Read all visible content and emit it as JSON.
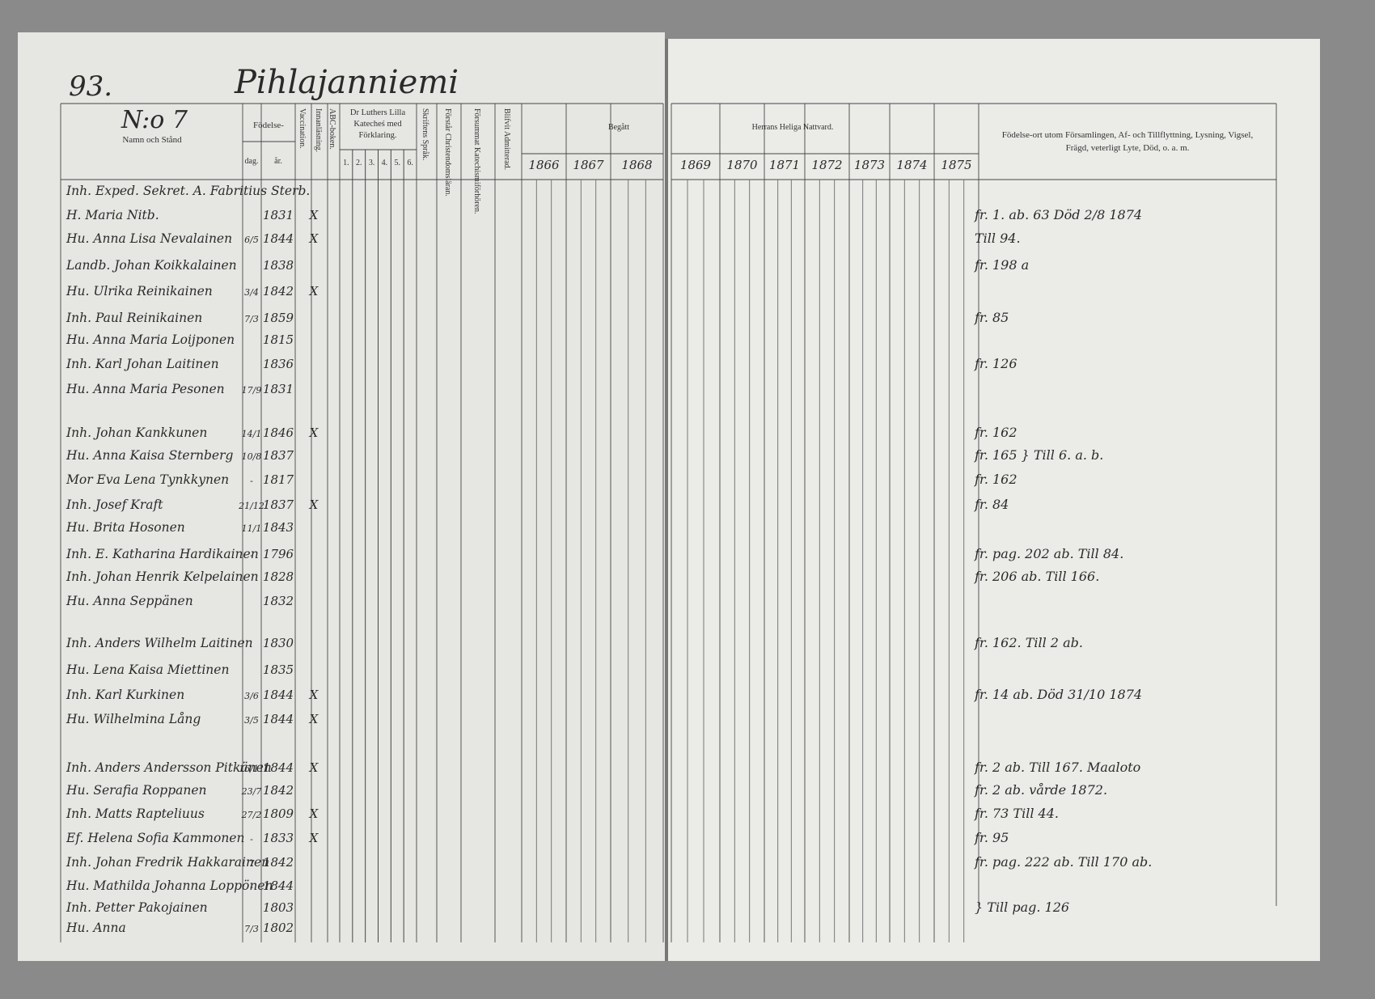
{
  "page": {
    "number": "93.",
    "village": "Pihlajanniemi",
    "household": "N:o 7",
    "col_name": "Namn och Stånd",
    "birth": "Födelse-",
    "day": "dag.",
    "year": "år.",
    "vertical": [
      "Vaccination.",
      "Innanläsning.",
      "ABC-boken."
    ],
    "luther": [
      "Dr Luthers Lilla",
      "Katecheś med",
      "Förklaring."
    ],
    "luther_parts": [
      "1.",
      "2.",
      "3.",
      "4.",
      "5.",
      "6."
    ],
    "vertical2": [
      "Skriftens Språk.",
      "Förstår Christendomsläran.",
      "Försummat Katechismiförhören.",
      "Blifvit Admitterad."
    ],
    "communion_left": "Begått",
    "communion_right": "Herrans Heliga Nattvard.",
    "years": [
      "1866",
      "1867",
      "1868",
      "1869",
      "1870",
      "1871",
      "1872",
      "1873",
      "1874",
      "1875"
    ],
    "remarks_header": [
      "Födelse-ort utom Församlingen, Af- och Tillflyttning, Lysning, Vigsel,",
      "Frägd, veterligt Lyte, Död, o. a. m."
    ],
    "rows": [
      {
        "name": "Inh. Exped. Sekret. A. Fabritius Sterb."
      },
      {
        "name": "H. Maria Nitb.",
        "year": "1831",
        "vacc": "X",
        "note": "fr. 1. ab. 63 Död 2/8 1874"
      },
      {
        "name": "Hu. Anna Lisa Nevalainen",
        "day": "6/5",
        "year": "1844",
        "vacc": "X",
        "note": "Till 94."
      },
      {
        "name": "Landb. Johan Koikkalainen",
        "year": "1838",
        "note": "fr. 198 a"
      },
      {
        "name": "Hu. Ulrika Reinikainen",
        "day": "3/4",
        "year": "1842",
        "vacc": "X"
      },
      {
        "name": "Inh. Paul Reinikainen",
        "day": "7/3",
        "year": "1859",
        "note": "fr. 85"
      },
      {
        "name": "Hu. Anna Maria Loijponen",
        "year": "1815"
      },
      {
        "name": "Inh. Karl Johan Laitinen",
        "year": "1836",
        "note": "fr. 126"
      },
      {
        "name": "Hu. Anna Maria Pesonen",
        "day": "17/9",
        "year": "1831"
      },
      {
        "name": "Inh. Johan Kankkunen",
        "day": "14/1",
        "year": "1846",
        "vacc": "X",
        "note": "fr. 162"
      },
      {
        "name": "Hu. Anna Kaisa Sternberg",
        "day": "10/8",
        "year": "1837",
        "note": "fr. 165 } Till 6. a. b."
      },
      {
        "name": "Mor Eva Lena Tynkkynen",
        "day": "-",
        "year": "1817",
        "note": "fr. 162"
      },
      {
        "name": "Inh. Josef Kraft",
        "day": "21/12",
        "year": "1837",
        "vacc": "X",
        "note": "fr. 84"
      },
      {
        "name": "Hu. Brita Hosonen",
        "day": "11/1",
        "year": "1843"
      },
      {
        "name": "Inh. E. Katharina Hardikainen",
        "day": "-",
        "year": "1796",
        "note": "fr. pag. 202 ab. Till 84."
      },
      {
        "name": "Inh. Johan Henrik Kelpelainen",
        "year": "1828",
        "note": "fr. 206 ab. Till 166."
      },
      {
        "name": "Hu. Anna Seppänen",
        "year": "1832"
      },
      {
        "name": "Inh. Anders Wilhelm Laitinen",
        "year": "1830",
        "note": "fr. 162. Till 2 ab."
      },
      {
        "name": "Hu. Lena Kaisa Miettinen",
        "year": "1835"
      },
      {
        "name": "Inh. Karl Kurkinen",
        "day": "3/6",
        "year": "1844",
        "vacc": "X",
        "note": "fr. 14 ab. Död 31/10 1874"
      },
      {
        "name": "Hu. Wilhelmina Lång",
        "day": "3/5",
        "year": "1844",
        "vacc": "X"
      },
      {
        "name": "Inh. Anders Andersson Pitkänen",
        "day": "16/11",
        "year": "1844",
        "vacc": "X",
        "note": "fr. 2 ab. Till 167. Maaloto"
      },
      {
        "name": "Hu. Serafia Roppanen",
        "day": "23/7",
        "year": "1842",
        "note": "fr. 2 ab. vårde 1872."
      },
      {
        "name": "Inh. Matts Rapteliuus",
        "day": "27/2",
        "year": "1809",
        "vacc": "X",
        "note": "fr. 73 Till 44."
      },
      {
        "name": "Ef. Helena Sofia Kammonen",
        "day": "-",
        "year": "1833",
        "vacc": "X",
        "note": "fr. 95"
      },
      {
        "name": "Inh. Johan Fredrik Hakkarainen",
        "day": "7",
        "year": "1842",
        "note": "fr. pag. 222 ab. Till 170 ab."
      },
      {
        "name": "Hu. Mathilda Johanna Loppönen",
        "day": "-",
        "year": "1844"
      },
      {
        "name": "Inh. Petter Pakojainen",
        "year": "1803",
        "note": "} Till pag. 126"
      },
      {
        "name": "Hu. Anna",
        "day": "7/3",
        "year": "1802"
      }
    ]
  }
}
